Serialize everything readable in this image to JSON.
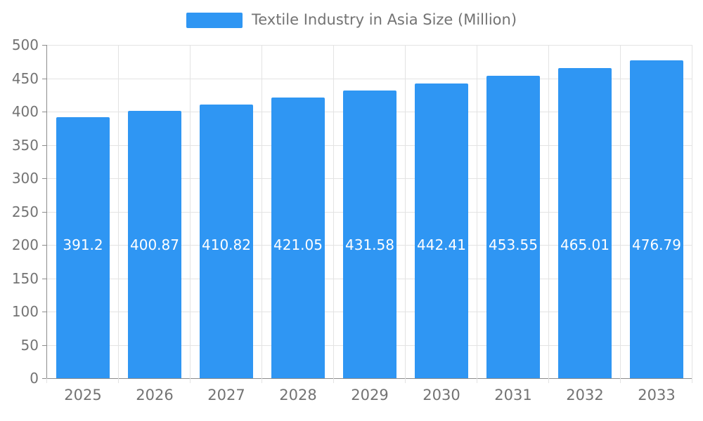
{
  "chart_data": {
    "type": "bar",
    "title": "Textile Industry in Asia Size (Million)",
    "categories": [
      "2025",
      "2026",
      "2027",
      "2028",
      "2029",
      "2030",
      "2031",
      "2032",
      "2033"
    ],
    "values": [
      391.2,
      400.87,
      410.82,
      421.05,
      431.58,
      442.41,
      453.55,
      465.01,
      476.79
    ],
    "value_labels": [
      "391.2",
      "400.87",
      "410.82",
      "421.05",
      "431.58",
      "442.41",
      "453.55",
      "465.01",
      "476.79"
    ],
    "xlabel": "",
    "ylabel": "",
    "ylim": [
      0,
      500
    ],
    "yticks": [
      0,
      50,
      100,
      150,
      200,
      250,
      300,
      350,
      400,
      450,
      500
    ],
    "grid": true,
    "legend_position": "top",
    "colors": {
      "bar": "#2f96f3",
      "bar_label": "#ffffff",
      "axis_text": "#737373",
      "legend_text": "#737373",
      "grid": "#e3e3e3",
      "axis_line": "#8c8c8c",
      "background": "#ffffff"
    }
  }
}
